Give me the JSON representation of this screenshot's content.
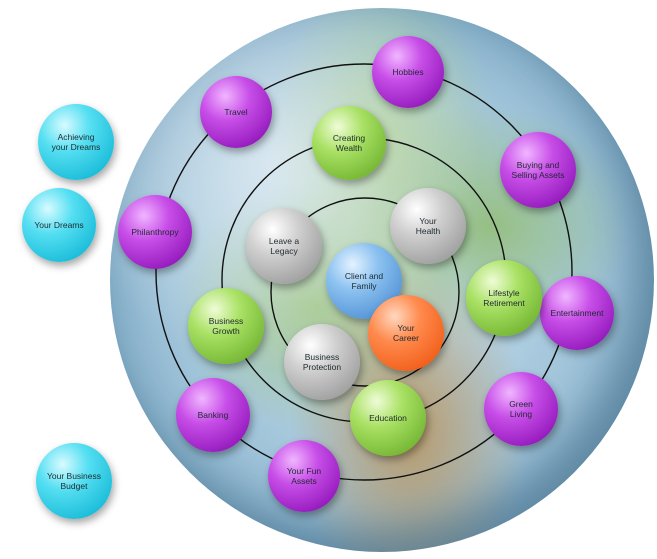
{
  "nodes": [
    {
      "id": "hobbies",
      "label": "Hobbies",
      "color": "purple"
    },
    {
      "id": "travel",
      "label": "Travel",
      "color": "purple"
    },
    {
      "id": "buying-selling-assets",
      "label": "Buying and\nSelling Assets",
      "color": "purple"
    },
    {
      "id": "philanthropy",
      "label": "Philanthropy",
      "color": "purple"
    },
    {
      "id": "entertainment",
      "label": "Entertainment",
      "color": "purple"
    },
    {
      "id": "banking",
      "label": "Banking",
      "color": "purple"
    },
    {
      "id": "green-living",
      "label": "Green\nLiving",
      "color": "purple"
    },
    {
      "id": "your-fun-assets",
      "label": "Your Fun\nAssets",
      "color": "purple"
    },
    {
      "id": "creating-wealth",
      "label": "Creating\nWealth",
      "color": "green"
    },
    {
      "id": "business-growth",
      "label": "Business\nGrowth",
      "color": "green"
    },
    {
      "id": "lifestyle-retirement",
      "label": "Lifestyle\nRetirement",
      "color": "green"
    },
    {
      "id": "education",
      "label": "Education",
      "color": "green"
    },
    {
      "id": "leave-a-legacy",
      "label": "Leave a\nLegacy",
      "color": "gray"
    },
    {
      "id": "your-health",
      "label": "Your\nHealth",
      "color": "gray"
    },
    {
      "id": "business-protection",
      "label": "Business\nProtection",
      "color": "gray"
    },
    {
      "id": "client-and-family",
      "label": "Client and\nFamily",
      "color": "blue"
    },
    {
      "id": "your-career",
      "label": "Your\nCareer",
      "color": "orange"
    },
    {
      "id": "achieving-your-dreams",
      "label": "Achieving\nyour Dreams",
      "color": "cyan"
    },
    {
      "id": "your-dreams",
      "label": "Your Dreams",
      "color": "cyan"
    },
    {
      "id": "your-business-budget",
      "label": "Your Business\nBudget",
      "color": "cyan"
    }
  ]
}
